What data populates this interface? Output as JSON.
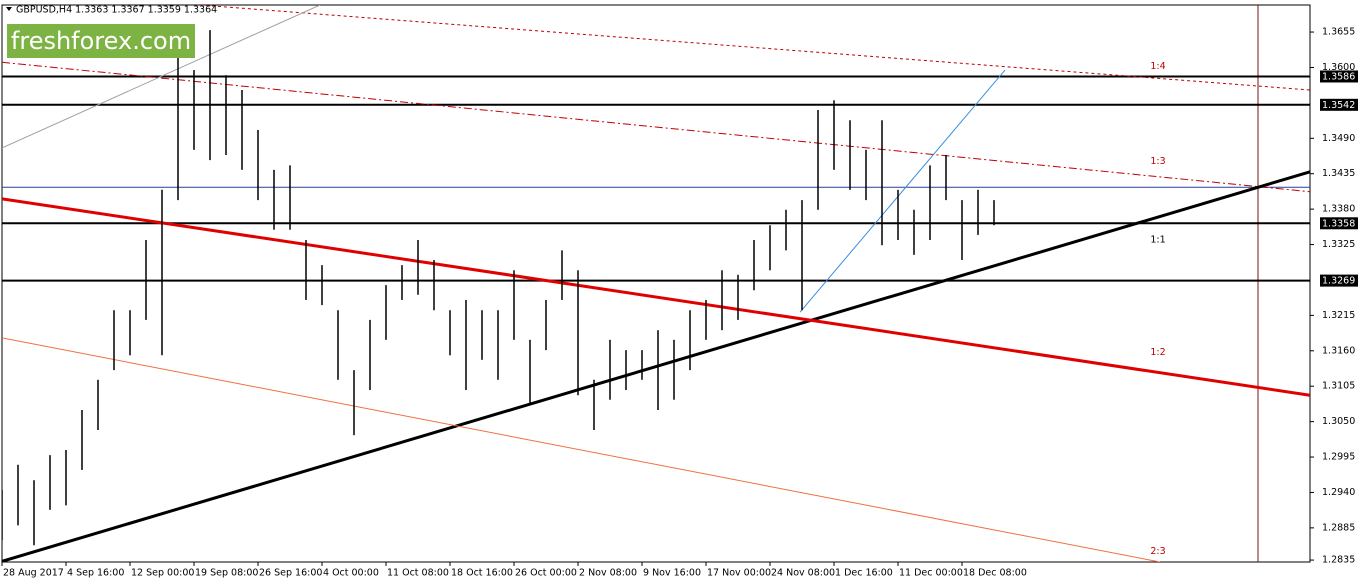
{
  "chart_data": {
    "type": "ohlc",
    "title": "GBPUSD,H4  1.3363 1.3367 1.3359 1.3364",
    "watermark": "freshforex.com",
    "color": "#000000",
    "x": [
      0,
      1,
      2,
      3,
      4,
      5,
      6,
      7,
      8,
      9,
      10,
      11,
      12,
      13,
      14,
      15,
      16,
      17,
      18,
      19,
      20,
      21,
      22,
      23,
      24,
      25,
      26,
      27,
      28,
      29,
      30,
      31,
      32,
      33,
      34,
      35,
      36,
      37,
      38,
      39,
      40,
      41,
      42,
      43,
      44,
      45,
      46,
      47,
      48,
      49,
      50,
      51,
      52,
      53,
      54,
      55,
      56,
      57,
      58,
      59,
      60,
      61,
      62
    ],
    "high": [
      1.2944,
      1.2983,
      1.2959,
      1.2998,
      1.3006,
      1.3068,
      1.3115,
      1.3223,
      1.3223,
      1.3332,
      1.341,
      1.3619,
      1.3596,
      1.3658,
      1.3588,
      1.3565,
      1.3503,
      1.3441,
      1.3448,
      1.3332,
      1.3293,
      1.3223,
      1.313,
      1.3208,
      1.3262,
      1.3293,
      1.3332,
      1.3301,
      1.3223,
      1.3239,
      1.3223,
      1.3223,
      1.3285,
      1.3177,
      1.3239,
      1.3316,
      1.3285,
      1.3115,
      1.3177,
      1.3161,
      1.3161,
      1.3192,
      1.3177,
      1.3223,
      1.3239,
      1.3285,
      1.3278,
      1.3332,
      1.3355,
      1.3379,
      1.3394,
      1.3534,
      1.3549,
      1.3518,
      1.3472,
      1.3518,
      1.341,
      1.3379,
      1.3448,
      1.3464,
      1.3394,
      1.341,
      1.3394
    ],
    "low": [
      1.2866,
      1.2889,
      1.2858,
      1.2913,
      1.292,
      1.2975,
      1.3037,
      1.313,
      1.3153,
      1.3208,
      1.3153,
      1.3394,
      1.3472,
      1.3456,
      1.3464,
      1.3441,
      1.3394,
      1.3348,
      1.3348,
      1.3239,
      1.3231,
      1.3115,
      1.3029,
      1.3099,
      1.3177,
      1.3239,
      1.3247,
      1.3223,
      1.3153,
      1.3099,
      1.3146,
      1.3115,
      1.3177,
      1.3076,
      1.3161,
      1.3239,
      1.3091,
      1.3037,
      1.3084,
      1.3099,
      1.3115,
      1.3068,
      1.3084,
      1.313,
      1.3177,
      1.3192,
      1.3208,
      1.3254,
      1.3285,
      1.3316,
      1.3223,
      1.3379,
      1.3441,
      1.341,
      1.3394,
      1.3324,
      1.3332,
      1.3309,
      1.3332,
      1.3394,
      1.3301,
      1.334,
      1.3355
    ],
    "xlim": [
      0,
      81.75
    ],
    "ylim": [
      1.2832,
      1.3697
    ],
    "xticks": [
      {
        "value": 0,
        "label": "28 Aug 2017"
      },
      {
        "value": 4,
        "label": "4 Sep 16:00"
      },
      {
        "value": 8,
        "label": "12 Sep 00:00"
      },
      {
        "value": 12,
        "label": "19 Sep 08:00"
      },
      {
        "value": 16,
        "label": "26 Sep 16:00"
      },
      {
        "value": 20,
        "label": "4 Oct 00:00"
      },
      {
        "value": 24,
        "label": "11 Oct 08:00"
      },
      {
        "value": 28,
        "label": "18 Oct 16:00"
      },
      {
        "value": 32,
        "label": "26 Oct 00:00"
      },
      {
        "value": 36,
        "label": "2 Nov 08:00"
      },
      {
        "value": 40,
        "label": "9 Nov 16:00"
      },
      {
        "value": 44,
        "label": "17 Nov 00:00"
      },
      {
        "value": 48,
        "label": "24 Nov 08:00"
      },
      {
        "value": 52,
        "label": "1 Dec 16:00"
      },
      {
        "value": 56,
        "label": "11 Dec 00:00"
      },
      {
        "value": 60,
        "label": "18 Dec 08:00"
      }
    ],
    "yticks": [
      {
        "value": 1.3655,
        "label": "1.3655"
      },
      {
        "value": 1.36,
        "label": "1.3600"
      },
      {
        "value": 1.349,
        "label": "1.3490"
      },
      {
        "value": 1.3435,
        "label": "1.3435"
      },
      {
        "value": 1.338,
        "label": "1.3380"
      },
      {
        "value": 1.3325,
        "label": "1.3325"
      },
      {
        "value": 1.3215,
        "label": "1.3215"
      },
      {
        "value": 1.316,
        "label": "1.3160"
      },
      {
        "value": 1.3105,
        "label": "1.3105"
      },
      {
        "value": 1.305,
        "label": "1.3050"
      },
      {
        "value": 1.2995,
        "label": "1.2995"
      },
      {
        "value": 1.294,
        "label": "1.2940"
      },
      {
        "value": 1.2885,
        "label": "1.2885"
      },
      {
        "value": 1.2835,
        "label": "1.2835"
      }
    ],
    "levels": [
      {
        "value": 1.3586,
        "label": "1.3586"
      },
      {
        "value": 1.3542,
        "label": "1.3542"
      },
      {
        "value": 1.3358,
        "label": "1.3358"
      },
      {
        "value": 1.3269,
        "label": "1.3269"
      }
    ],
    "hlines": [
      {
        "value": 1.3414,
        "color": "#2a3f9a"
      }
    ],
    "vlines": [
      {
        "value": 78.5,
        "color": "#7a1010"
      }
    ],
    "trendlines": [
      {
        "name": "1:4",
        "color": "#c00000",
        "style": "dashed",
        "points": [
          [
            12.375,
            1.3697
          ],
          [
            81.75,
            1.3565
          ]
        ]
      },
      {
        "name": "1:3",
        "color": "#c00000",
        "style": "dashdot",
        "points": [
          [
            0,
            1.3608
          ],
          [
            81.75,
            1.3407
          ]
        ]
      },
      {
        "name": "1:1",
        "color": "#000000",
        "style": "thick",
        "points": [
          [
            0,
            1.2833
          ],
          [
            81.75,
            1.3438
          ]
        ]
      },
      {
        "name": "1:2",
        "color": "#e00000",
        "style": "thick",
        "points": [
          [
            0,
            1.3396
          ],
          [
            81.75,
            1.3091
          ]
        ]
      },
      {
        "name": "2:3",
        "color": "#f07040",
        "style": "thin",
        "points": [
          [
            0,
            1.318
          ],
          [
            72.375,
            1.2832
          ]
        ]
      },
      {
        "color": "#a0a0a0",
        "style": "thin",
        "points": [
          [
            0,
            1.3475
          ],
          [
            19.875,
            1.3697
          ]
        ]
      },
      {
        "color": "#3a8ee0",
        "style": "thin",
        "points": [
          [
            49.875,
            1.322
          ],
          [
            62.6875,
            1.3596
          ]
        ]
      }
    ]
  }
}
